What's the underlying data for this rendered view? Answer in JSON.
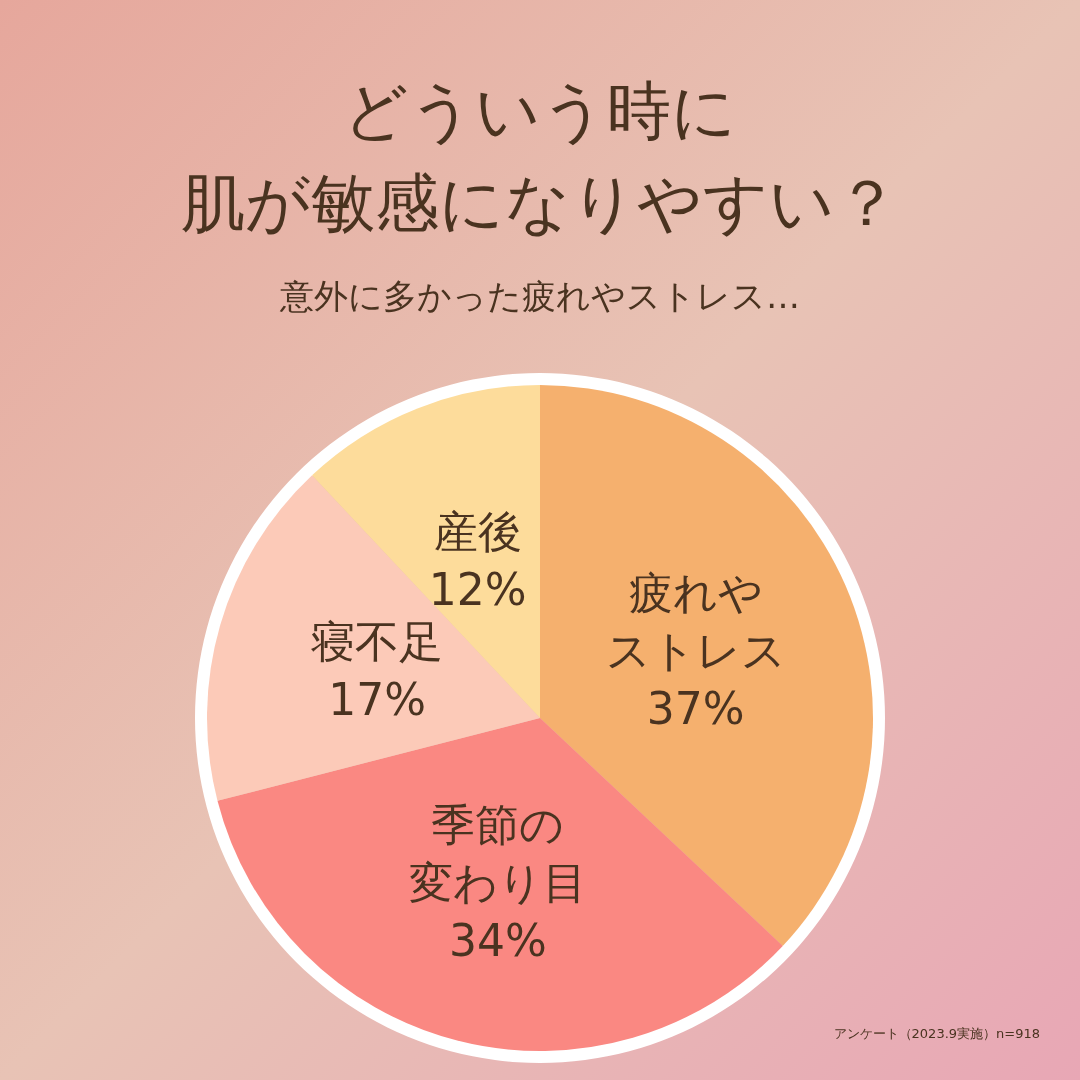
{
  "chart_data": {
    "type": "pie",
    "title": "どういう時に肌が敏感になりやすい？",
    "subtitle": "意外に多かった疲れやストレス…",
    "categories": [
      "疲れやストレス",
      "季節の変わり目",
      "寝不足",
      "産後"
    ],
    "values": [
      37,
      34,
      17,
      12
    ],
    "value_labels": [
      "37%",
      "34%",
      "17%",
      "12%"
    ],
    "colors": [
      "#f5b06e",
      "#fa8882",
      "#fccab8",
      "#fddc9b"
    ],
    "legend": false,
    "annotations": [
      "アンケート（2023.9実施）n=918"
    ]
  }
}
